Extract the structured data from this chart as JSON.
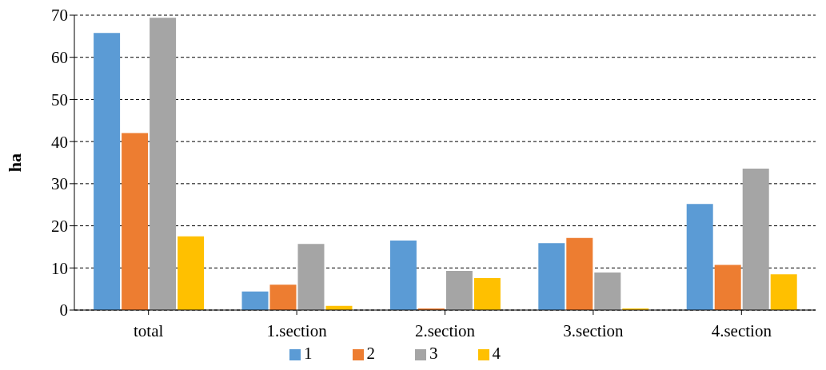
{
  "chart_data": {
    "type": "bar",
    "ylabel": "ha",
    "categories": [
      "total",
      "1.section",
      "2.section",
      "3.section",
      "4.section"
    ],
    "series": [
      {
        "name": "1",
        "color": "#5b9bd5",
        "values": [
          65.8,
          4.4,
          16.5,
          15.9,
          25.2
        ]
      },
      {
        "name": "2",
        "color": "#ed7d31",
        "values": [
          42,
          6,
          0.4,
          17.1,
          10.7
        ]
      },
      {
        "name": "3",
        "color": "#a5a5a5",
        "values": [
          69.4,
          15.7,
          9.3,
          8.9,
          33.6
        ]
      },
      {
        "name": "4",
        "color": "#ffc000",
        "values": [
          17.5,
          1,
          7.6,
          0.4,
          8.5
        ]
      }
    ],
    "ylim": [
      0,
      70
    ],
    "yticks": [
      0,
      10,
      20,
      30,
      40,
      50,
      60,
      70
    ],
    "grid": "y",
    "legend": "bottom"
  }
}
